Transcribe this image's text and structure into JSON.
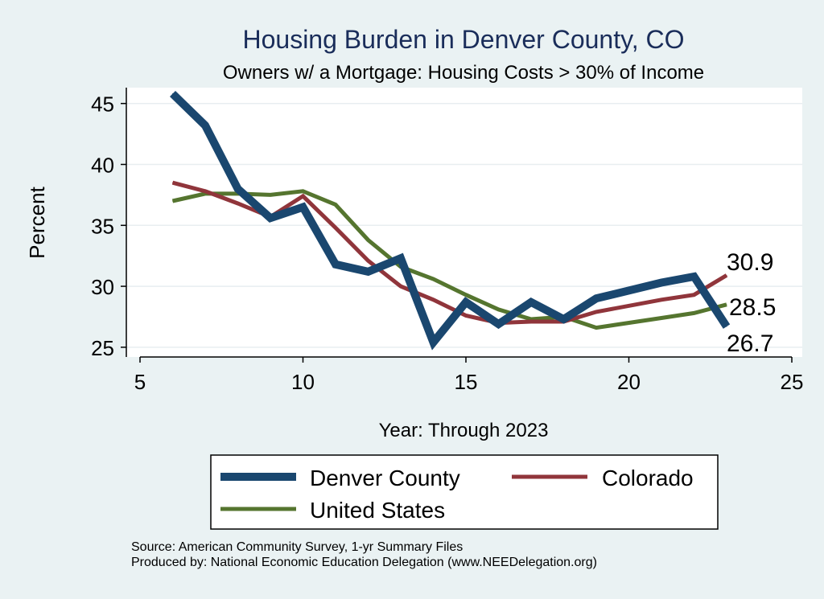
{
  "chart_data": {
    "type": "line",
    "title": "Housing Burden in Denver County, CO",
    "subtitle": "Owners w/ a Mortgage: Housing Costs > 30% of Income",
    "xlabel": "Year: Through 2023",
    "ylabel": "Percent",
    "xlim": [
      5,
      25
    ],
    "ylim": [
      24.2,
      46.3
    ],
    "x_ticks": [
      5,
      10,
      15,
      20,
      25
    ],
    "y_ticks": [
      25,
      30,
      35,
      40,
      45
    ],
    "grid": true,
    "legend_position": "bottom",
    "series": [
      {
        "name": "Denver County",
        "color": "#1a476f",
        "x": [
          6,
          7,
          8,
          9,
          10,
          11,
          12,
          13,
          14,
          15,
          16,
          17,
          18,
          19,
          21,
          22,
          23
        ],
        "values": [
          45.8,
          43.2,
          38.0,
          35.6,
          36.5,
          31.8,
          31.2,
          32.3,
          25.4,
          28.7,
          26.9,
          28.7,
          27.3,
          29.0,
          30.3,
          30.8,
          26.7
        ]
      },
      {
        "name": "Colorado",
        "color": "#90353b",
        "x": [
          6,
          7,
          8,
          9,
          10,
          11,
          12,
          13,
          14,
          15,
          16,
          17,
          18,
          19,
          21,
          22,
          23
        ],
        "values": [
          38.5,
          37.8,
          36.8,
          35.7,
          37.4,
          34.8,
          32.1,
          30.0,
          28.9,
          27.6,
          27.0,
          27.1,
          27.1,
          27.9,
          28.9,
          29.3,
          30.9
        ]
      },
      {
        "name": "United States",
        "color": "#55752f",
        "x": [
          6,
          7,
          8,
          9,
          10,
          11,
          12,
          13,
          14,
          15,
          16,
          17,
          18,
          19,
          21,
          22,
          23
        ],
        "values": [
          37.0,
          37.6,
          37.6,
          37.5,
          37.8,
          36.7,
          33.8,
          31.6,
          30.6,
          29.3,
          28.1,
          27.3,
          27.5,
          26.6,
          27.4,
          27.8,
          28.5
        ]
      }
    ],
    "end_labels": [
      "30.9",
      "28.5",
      "26.7"
    ]
  },
  "footer": {
    "source": "Source: American Community Survey, 1-yr Summary Files",
    "producer": "Produced by: National Economic Education Delegation (www.NEEDelegation.org)"
  }
}
